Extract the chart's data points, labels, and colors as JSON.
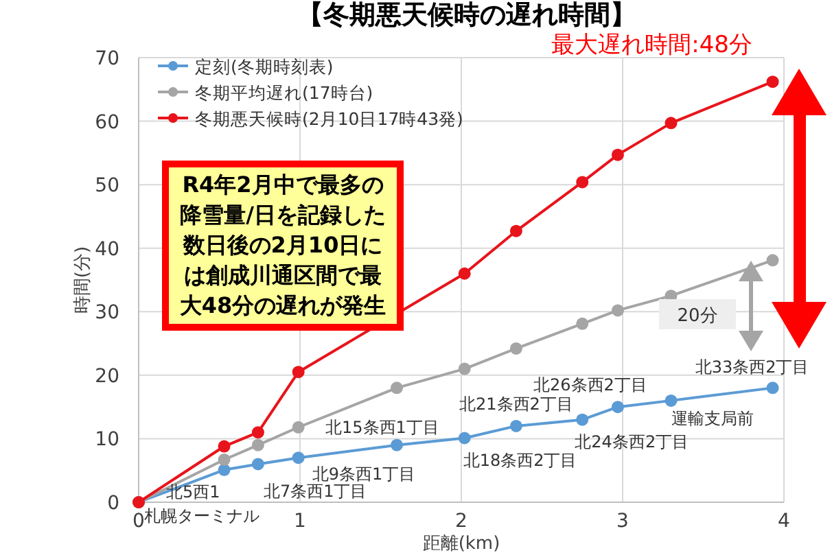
{
  "chart_data": {
    "type": "line",
    "title": "【冬期悪天候時の遅れ時間】",
    "xlabel": "距離(km)",
    "ylabel": "時間(分)",
    "x": [
      0,
      0.53,
      0.74,
      0.99,
      1.6,
      2.02,
      2.34,
      2.75,
      2.97,
      3.3,
      3.93
    ],
    "series": [
      {
        "name": "定刻(冬期時刻表)",
        "color": "#5b9bd5",
        "values": [
          0,
          5.1,
          6,
          7,
          9,
          10.1,
          12,
          13,
          15,
          16,
          18
        ]
      },
      {
        "name": "冬期平均遅れ(17時台)",
        "color": "#a5a5a5",
        "values": [
          0,
          6.7,
          9,
          11.8,
          18,
          21,
          24.2,
          28.1,
          30.2,
          32.5,
          38.1
        ]
      },
      {
        "name": "冬期悪天候時(2月10日17時43発)",
        "color": "#e8141b",
        "values": [
          0,
          8.8,
          11,
          20.5,
          null,
          36,
          42.7,
          50.4,
          54.7,
          59.7,
          66.2
        ]
      }
    ],
    "xlim": [
      0,
      4
    ],
    "ylim": [
      0,
      70
    ],
    "xticks": [
      0,
      1,
      2,
      3,
      4
    ],
    "yticks": [
      0,
      10,
      20,
      30,
      40,
      50,
      60,
      70
    ],
    "grid": true,
    "legend": "top left",
    "marker": "circle",
    "annotations": [
      {
        "text": "札幌ターミナル",
        "x": 0,
        "y": 0
      },
      {
        "text": "北5西1",
        "x": 0.53,
        "y": 5.1
      },
      {
        "text": "北7条西1丁目",
        "x": 0.74,
        "y": 6
      },
      {
        "text": "北9条西1丁目",
        "x": 0.99,
        "y": 7
      },
      {
        "text": "北15条西1丁目",
        "x": 1.6,
        "y": 9
      },
      {
        "text": "北18条西2丁目",
        "x": 2.02,
        "y": 10.1
      },
      {
        "text": "北21条西2丁目",
        "x": 2.34,
        "y": 12
      },
      {
        "text": "北24条西2丁目",
        "x": 2.75,
        "y": 13
      },
      {
        "text": "北26条西2丁目",
        "x": 2.97,
        "y": 15
      },
      {
        "text": "運輸支局前",
        "x": 3.3,
        "y": 16
      },
      {
        "text": "北33条西2丁目",
        "x": 3.93,
        "y": 18
      },
      "R4年2月中で最多の降雪量/日を記録した数日後の2月10日には創成川通区間で最大48分の遅れが発生",
      "最大遅れ時間:48分",
      "20分"
    ]
  }
}
